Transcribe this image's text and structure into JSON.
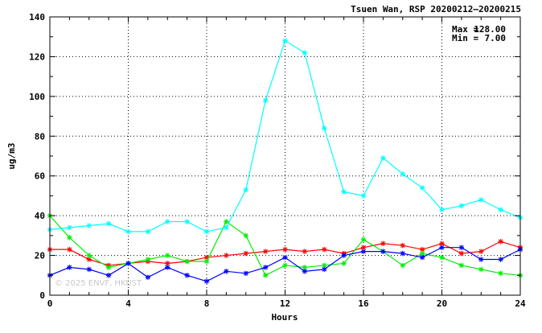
{
  "chart_data": {
    "type": "line",
    "title": "Tsuen Wan, RSP 20200212–20200215",
    "xlabel": "Hours",
    "ylabel": "ug/m3",
    "xlim": [
      0,
      24
    ],
    "ylim": [
      0,
      140
    ],
    "x_ticks": [
      0,
      4,
      8,
      12,
      16,
      20,
      24
    ],
    "y_ticks": [
      0,
      20,
      40,
      60,
      80,
      100,
      120,
      140
    ],
    "grid": true,
    "marker": "asterisk",
    "stats": {
      "max_label": "Max =",
      "max_value": "128.00",
      "min_label": "Min =",
      "min_value": "7.00"
    },
    "watermark": "© 2025  ENVF, HKUST",
    "x": [
      0,
      1,
      2,
      3,
      4,
      5,
      6,
      7,
      8,
      9,
      10,
      11,
      12,
      13,
      14,
      15,
      16,
      17,
      18,
      19,
      20,
      21,
      22,
      23,
      24
    ],
    "series": [
      {
        "color": "#ff0000",
        "values": [
          23,
          23,
          18,
          15,
          16,
          17,
          16,
          17,
          19,
          20,
          21,
          22,
          23,
          22,
          23,
          21,
          24,
          26,
          25,
          23,
          26,
          21,
          22,
          27,
          24
        ]
      },
      {
        "color": "#00ee00",
        "values": [
          40,
          29,
          20,
          14,
          16,
          18,
          20,
          17,
          17,
          37,
          30,
          10,
          15,
          14,
          15,
          16,
          28,
          22,
          15,
          21,
          19,
          15,
          13,
          11,
          10
        ]
      },
      {
        "color": "#0000ff",
        "values": [
          10,
          14,
          13,
          10,
          16,
          9,
          14,
          10,
          7,
          12,
          11,
          14,
          19,
          12,
          13,
          20,
          22,
          22,
          21,
          19,
          24,
          24,
          18,
          18,
          23
        ]
      },
      {
        "color": "#00ffff",
        "values": [
          33,
          34,
          35,
          36,
          32,
          32,
          37,
          37,
          32,
          34,
          53,
          98,
          128,
          122,
          84,
          52,
          50,
          69,
          61,
          54,
          43,
          45,
          48,
          43,
          39
        ]
      }
    ]
  }
}
